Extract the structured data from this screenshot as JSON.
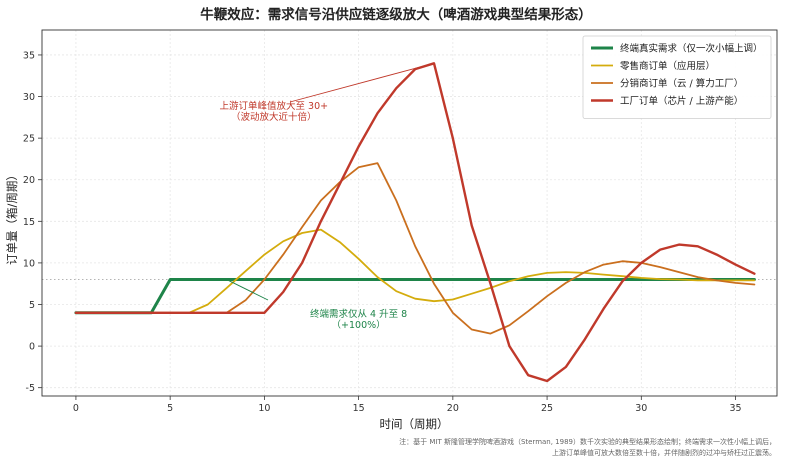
{
  "chart_data": {
    "type": "line",
    "title": "牛鞭效应：需求信号沿供应链逐级放大（啤酒游戏典型结果形态）",
    "xlabel": "时间（周期）",
    "ylabel": "订单量（箱/周期）",
    "xlim": [
      -1.8,
      37.2
    ],
    "ylim": [
      -6,
      38
    ],
    "xticks": [
      0,
      5,
      10,
      15,
      20,
      25,
      30,
      35
    ],
    "yticks": [
      -5,
      0,
      5,
      10,
      15,
      20,
      25,
      30,
      35
    ],
    "grid": true,
    "legend_position": "top-right",
    "reference_line": {
      "y": 8,
      "style": "dotted"
    },
    "series": [
      {
        "name": "终端真实需求（仅一次小幅上调）",
        "color": "#1e8449",
        "width": 3,
        "points": [
          [
            0,
            4
          ],
          [
            4,
            4
          ],
          [
            5,
            8
          ],
          [
            36,
            8
          ]
        ]
      },
      {
        "name": "零售商订单（应用层）",
        "color": "#d4ac0d",
        "width": 1.8,
        "points": [
          [
            0,
            4
          ],
          [
            6,
            4
          ],
          [
            7,
            5
          ],
          [
            8,
            7
          ],
          [
            9,
            9
          ],
          [
            10,
            11
          ],
          [
            11,
            12.6
          ],
          [
            12,
            13.6
          ],
          [
            13,
            14
          ],
          [
            14,
            12.5
          ],
          [
            15,
            10.5
          ],
          [
            16,
            8.3
          ],
          [
            17,
            6.6
          ],
          [
            18,
            5.7
          ],
          [
            19,
            5.4
          ],
          [
            20,
            5.6
          ],
          [
            21,
            6.3
          ],
          [
            22,
            7
          ],
          [
            23,
            7.8
          ],
          [
            24,
            8.4
          ],
          [
            25,
            8.8
          ],
          [
            26,
            8.9
          ],
          [
            27,
            8.8
          ],
          [
            28,
            8.6
          ],
          [
            29,
            8.4
          ],
          [
            30,
            8.2
          ],
          [
            31,
            8.05
          ],
          [
            32,
            8
          ],
          [
            33,
            7.9
          ],
          [
            34,
            7.9
          ],
          [
            35,
            7.9
          ],
          [
            36,
            7.9
          ]
        ]
      },
      {
        "name": "分销商订单（云 / 算力工厂）",
        "color": "#ca6f1e",
        "width": 1.8,
        "points": [
          [
            0,
            4
          ],
          [
            8,
            4
          ],
          [
            9,
            5.5
          ],
          [
            10,
            8
          ],
          [
            11,
            11
          ],
          [
            12,
            14.3
          ],
          [
            13,
            17.5
          ],
          [
            14,
            19.7
          ],
          [
            15,
            21.5
          ],
          [
            16,
            22
          ],
          [
            17,
            17.5
          ],
          [
            18,
            12
          ],
          [
            19,
            7.5
          ],
          [
            20,
            4
          ],
          [
            21,
            2
          ],
          [
            22,
            1.5
          ],
          [
            23,
            2.5
          ],
          [
            24,
            4.2
          ],
          [
            25,
            6
          ],
          [
            26,
            7.6
          ],
          [
            27,
            8.9
          ],
          [
            28,
            9.8
          ],
          [
            29,
            10.2
          ],
          [
            30,
            10
          ],
          [
            31,
            9.5
          ],
          [
            32,
            8.9
          ],
          [
            33,
            8.3
          ],
          [
            34,
            7.9
          ],
          [
            35,
            7.6
          ],
          [
            36,
            7.4
          ]
        ]
      },
      {
        "name": "工厂订单（芯片 / 上游产能）",
        "color": "#c0392b",
        "width": 2.4,
        "points": [
          [
            0,
            4
          ],
          [
            10,
            4
          ],
          [
            11,
            6.5
          ],
          [
            12,
            10
          ],
          [
            13,
            15
          ],
          [
            14,
            19.5
          ],
          [
            15,
            24
          ],
          [
            16,
            28
          ],
          [
            17,
            31
          ],
          [
            18,
            33.3
          ],
          [
            19,
            34
          ],
          [
            20,
            25
          ],
          [
            21,
            14.5
          ],
          [
            22,
            7.5
          ],
          [
            23,
            0
          ],
          [
            24,
            -3.5
          ],
          [
            25,
            -4.2
          ],
          [
            26,
            -2.5
          ],
          [
            27,
            0.8
          ],
          [
            28,
            4.5
          ],
          [
            29,
            7.8
          ],
          [
            30,
            10
          ],
          [
            31,
            11.6
          ],
          [
            32,
            12.2
          ],
          [
            33,
            12
          ],
          [
            34,
            11
          ],
          [
            35,
            9.8
          ],
          [
            36,
            8.7
          ]
        ]
      }
    ],
    "annotations": [
      {
        "text_lines": [
          "上游订单峰值放大至 30+",
          "（波动放大近十倍）"
        ],
        "color": "#c0392b",
        "text_at": [
          10.5,
          28.5
        ],
        "arrow_to": [
          19,
          34
        ]
      },
      {
        "text_lines": [
          "终端需求仅从 4 升至 8",
          "（+100%）"
        ],
        "color": "#1e8449",
        "text_at": [
          15,
          3.5
        ],
        "arrow_to": [
          8,
          8
        ]
      }
    ]
  },
  "footnote": [
    "注：基于 MIT 斯隆管理学院啤酒游戏（Sterman, 1989）数千次实验的典型结果形态绘制；终端需求一次性小幅上调后，",
    "上游订单峰值可放大数倍至数十倍，并伴随剧烈的过冲与矫枉过正震荡。"
  ]
}
